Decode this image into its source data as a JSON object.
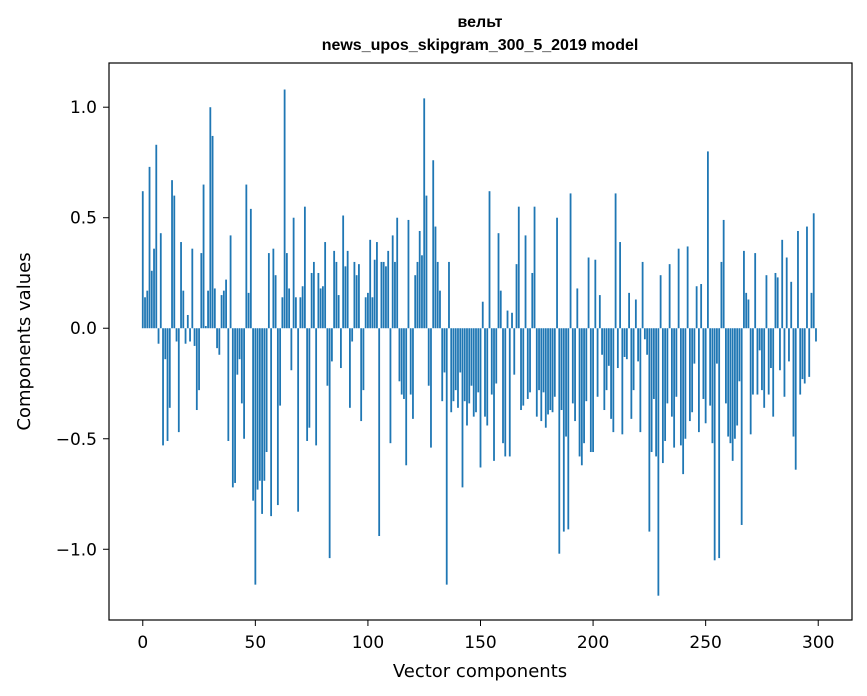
{
  "chart_data": {
    "type": "bar",
    "title": "вельт",
    "subtitle": "news_upos_skipgram_300_5_2019 model",
    "xlabel": "Vector components",
    "ylabel": "Components values",
    "xlim": [
      -15,
      315
    ],
    "ylim": [
      -1.32,
      1.2
    ],
    "xticks": [
      0,
      50,
      100,
      150,
      200,
      250,
      300
    ],
    "xtick_labels": [
      "0",
      "50",
      "100",
      "150",
      "200",
      "250",
      "300"
    ],
    "yticks": [
      -1.0,
      -0.5,
      0.0,
      0.5,
      1.0
    ],
    "ytick_labels": [
      "−1.0",
      "−0.5",
      "0.0",
      "0.5",
      "1.0"
    ],
    "bar_color": "#1f77b4",
    "grid": false,
    "x": "0..299 (one bar per vector component)",
    "values": [
      0.62,
      0.14,
      0.17,
      0.73,
      0.26,
      0.36,
      0.83,
      -0.07,
      0.43,
      -0.53,
      -0.14,
      -0.51,
      -0.36,
      0.67,
      0.6,
      -0.06,
      -0.47,
      0.39,
      0.17,
      -0.07,
      0.06,
      -0.06,
      0.36,
      -0.08,
      -0.37,
      -0.28,
      0.34,
      0.65,
      0.01,
      0.17,
      1.0,
      0.87,
      0.18,
      -0.09,
      -0.12,
      0.15,
      0.17,
      0.22,
      -0.51,
      0.42,
      -0.72,
      -0.7,
      -0.21,
      -0.14,
      -0.34,
      -0.5,
      0.65,
      0.16,
      0.54,
      -0.78,
      -1.16,
      -0.73,
      -0.69,
      -0.84,
      -0.69,
      -0.56,
      0.34,
      -0.85,
      0.36,
      0.24,
      -0.8,
      -0.35,
      0.14,
      1.08,
      0.34,
      0.18,
      -0.19,
      0.5,
      0.14,
      -0.83,
      0.14,
      0.19,
      0.55,
      -0.51,
      -0.45,
      0.25,
      0.3,
      -0.53,
      0.25,
      0.18,
      0.19,
      0.39,
      -0.26,
      -1.04,
      -0.15,
      0.35,
      0.3,
      0.15,
      -0.18,
      0.51,
      0.28,
      0.35,
      -0.36,
      -0.06,
      0.3,
      0.24,
      0.29,
      -0.42,
      -0.28,
      0.14,
      0.16,
      0.4,
      0.14,
      0.31,
      0.39,
      -0.94,
      0.3,
      0.3,
      0.28,
      0.35,
      -0.52,
      0.42,
      0.3,
      0.5,
      -0.24,
      -0.3,
      -0.32,
      -0.62,
      0.49,
      -0.3,
      -0.41,
      0.24,
      0.3,
      0.44,
      0.33,
      1.04,
      0.6,
      -0.26,
      -0.54,
      0.76,
      0.46,
      0.3,
      0.17,
      -0.33,
      -0.2,
      -1.16,
      0.3,
      -0.38,
      -0.33,
      -0.28,
      -0.36,
      -0.2,
      -0.72,
      -0.33,
      -0.44,
      -0.34,
      -0.26,
      -0.4,
      -0.38,
      -0.29,
      -0.63,
      0.12,
      -0.4,
      -0.44,
      0.62,
      -0.3,
      -0.6,
      -0.25,
      0.43,
      0.17,
      -0.52,
      -0.58,
      0.08,
      -0.58,
      0.07,
      -0.21,
      0.29,
      0.55,
      -0.37,
      -0.35,
      0.42,
      -0.32,
      -0.29,
      0.25,
      0.55,
      -0.4,
      -0.28,
      -0.42,
      -0.29,
      -0.45,
      -0.39,
      -0.37,
      -0.38,
      -0.31,
      0.5,
      -1.02,
      -0.37,
      -0.92,
      -0.49,
      -0.91,
      0.61,
      -0.34,
      -0.42,
      0.18,
      -0.58,
      -0.62,
      -0.52,
      -0.33,
      0.32,
      -0.56,
      -0.56,
      0.31,
      -0.31,
      0.15,
      -0.12,
      -0.37,
      -0.28,
      -0.17,
      -0.41,
      -0.47,
      0.61,
      -0.18,
      0.39,
      -0.48,
      -0.13,
      -0.14,
      0.16,
      -0.41,
      -0.28,
      0.13,
      -0.15,
      -0.47,
      0.3,
      -0.05,
      -0.12,
      -0.92,
      -0.56,
      -0.32,
      -0.58,
      -1.21,
      0.24,
      -0.61,
      -0.51,
      -0.34,
      0.29,
      -0.4,
      -0.54,
      -0.31,
      0.36,
      -0.53,
      -0.66,
      -0.5,
      0.37,
      -0.42,
      -0.38,
      -0.16,
      0.19,
      -0.47,
      0.2,
      -0.32,
      -0.43,
      0.8,
      -0.35,
      -0.52,
      -1.05,
      -0.16,
      -1.04,
      0.3,
      0.49,
      -0.34,
      -0.49,
      -0.52,
      -0.6,
      -0.5,
      -0.44,
      -0.24,
      -0.89,
      0.35,
      0.16,
      0.13,
      -0.48,
      -0.3,
      0.34,
      -0.3,
      -0.1,
      -0.28,
      -0.36,
      0.24,
      -0.3,
      -0.18,
      -0.4,
      0.25,
      0.23,
      -0.19,
      0.4,
      -0.31,
      0.32,
      -0.15,
      0.21,
      -0.49,
      -0.64,
      0.44,
      -0.3,
      -0.23,
      -0.25,
      0.46,
      -0.22,
      0.16,
      0.52,
      -0.06
    ]
  }
}
